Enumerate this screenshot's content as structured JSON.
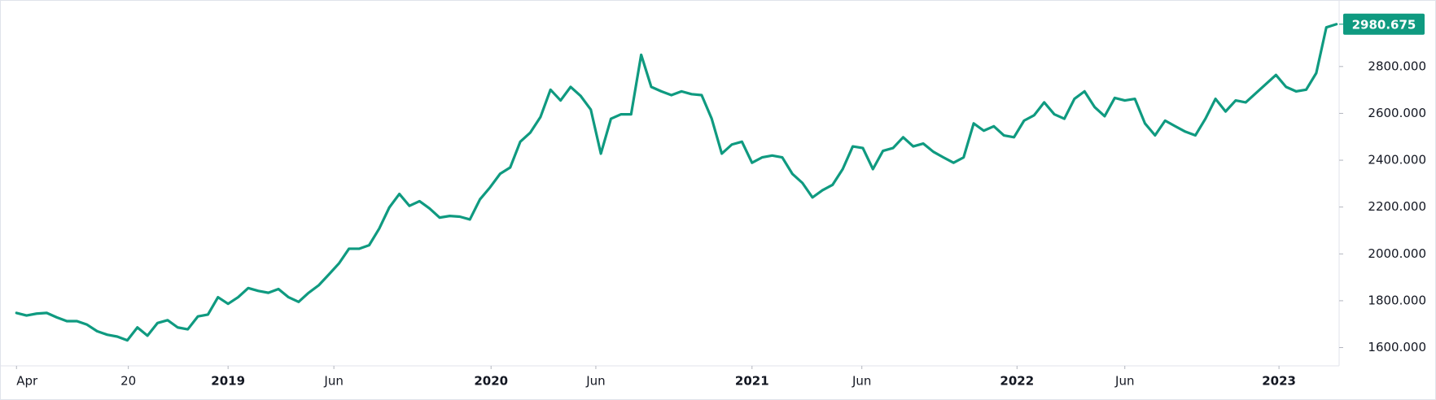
{
  "chart_data": {
    "type": "line",
    "series": [
      {
        "color": "#0f9a80",
        "values": [
          1748,
          1737,
          1745,
          1748,
          1729,
          1713,
          1713,
          1698,
          1670,
          1655,
          1647,
          1631,
          1686,
          1651,
          1705,
          1717,
          1686,
          1678,
          1733,
          1741,
          1815,
          1787,
          1815,
          1854,
          1842,
          1834,
          1850,
          1815,
          1795,
          1834,
          1866,
          1912,
          1959,
          2022,
          2022,
          2037,
          2108,
          2198,
          2256,
          2205,
          2225,
          2194,
          2155,
          2162,
          2159,
          2147,
          2233,
          2284,
          2342,
          2369,
          2479,
          2518,
          2584,
          2701,
          2655,
          2713,
          2674,
          2616,
          2428,
          2577,
          2596,
          2596,
          2850,
          2713,
          2694,
          2678,
          2694,
          2682,
          2678,
          2577,
          2428,
          2467,
          2479,
          2389,
          2412,
          2420,
          2412,
          2342,
          2303,
          2241,
          2272,
          2295,
          2362,
          2459,
          2452,
          2362,
          2440,
          2452,
          2498,
          2459,
          2471,
          2436,
          2412,
          2389,
          2412,
          2557,
          2526,
          2545,
          2506,
          2498,
          2569,
          2592,
          2647,
          2596,
          2577,
          2662,
          2694,
          2627,
          2588,
          2666,
          2655,
          2662,
          2557,
          2506,
          2569,
          2545,
          2522,
          2506,
          2577,
          2662,
          2608,
          2655,
          2647,
          2686,
          2725,
          2764,
          2713,
          2694,
          2701,
          2772,
          2967,
          2980.675
        ]
      }
    ],
    "xlim": [
      -1.636,
      131.27
    ],
    "xticks": [
      {
        "value": 0,
        "label": "Apr"
      },
      {
        "value": 11.1,
        "label": "20"
      },
      {
        "value": 21,
        "label": "2019"
      },
      {
        "value": 31.5,
        "label": "Jun"
      },
      {
        "value": 47.1,
        "label": "2020"
      },
      {
        "value": 57.5,
        "label": "Jun"
      },
      {
        "value": 73,
        "label": "2021"
      },
      {
        "value": 83.9,
        "label": "Jun"
      },
      {
        "value": 99.3,
        "label": "2022"
      },
      {
        "value": 110,
        "label": "Jun"
      },
      {
        "value": 125.3,
        "label": "2023"
      }
    ],
    "ylim": [
      1522,
      3084
    ],
    "yticks": [
      {
        "value": 1600,
        "label": "1600.000"
      },
      {
        "value": 1800,
        "label": "1800.000"
      },
      {
        "value": 2000,
        "label": "2000.000"
      },
      {
        "value": 2200,
        "label": "2200.000"
      },
      {
        "value": 2400,
        "label": "2400.000"
      },
      {
        "value": 2600,
        "label": "2600.000"
      },
      {
        "value": 2800,
        "label": "2800.000"
      }
    ]
  }
}
